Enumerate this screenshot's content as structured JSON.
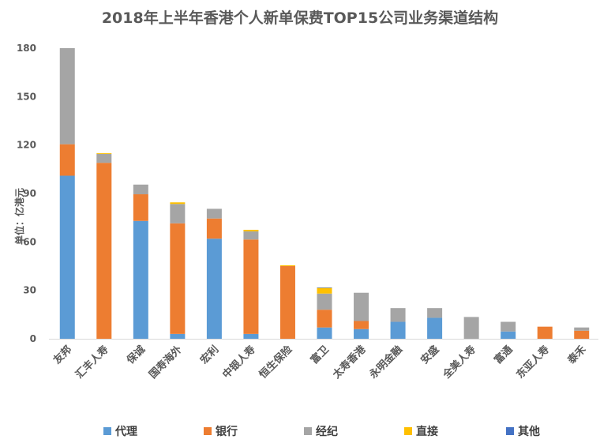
{
  "chart_data": {
    "type": "bar",
    "stacked": true,
    "title": "2018年上半年香港个人新单保费TOP15公司业务渠道结构",
    "ylabel": "单位：亿港元",
    "xlabel": "",
    "ylim": [
      0,
      180
    ],
    "yticks": [
      "0",
      "30",
      "60",
      "90",
      "120",
      "150",
      "180"
    ],
    "grid": false,
    "legend_position": "bottom",
    "categories": [
      "友邦",
      "汇丰人寿",
      "保诚",
      "国寿海外",
      "宏利",
      "中银人寿",
      "恒生保险",
      "富卫",
      "太寿香港",
      "永明金融",
      "安盛",
      "全美人寿",
      "富通",
      "东亚人寿",
      "泰禾"
    ],
    "series": [
      {
        "name": "代理",
        "color": "#5B9BD5",
        "values": [
          101,
          0,
          73,
          3,
          62,
          3,
          0,
          7,
          6,
          10.5,
          13,
          0,
          4.5,
          0,
          0
        ]
      },
      {
        "name": "银行",
        "color": "#ED7D31",
        "values": [
          19.5,
          109,
          16.5,
          68.5,
          12.5,
          58.5,
          45,
          11,
          5,
          0,
          0,
          0,
          0,
          7.5,
          5
        ]
      },
      {
        "name": "经纪",
        "color": "#A5A5A5",
        "values": [
          59.5,
          5.5,
          6,
          12,
          6,
          5,
          0,
          10,
          17.5,
          8.5,
          6,
          13.5,
          6,
          0,
          2
        ]
      },
      {
        "name": "直接",
        "color": "#FFC000",
        "values": [
          0,
          0.5,
          0,
          1,
          0,
          1,
          0.5,
          3.5,
          0,
          0,
          0,
          0,
          0,
          0,
          0
        ]
      },
      {
        "name": "其他",
        "color": "#4472C4",
        "values": [
          0,
          0,
          0,
          0,
          0,
          0,
          0,
          0.3,
          0,
          0,
          0,
          0,
          0,
          0,
          0
        ]
      }
    ]
  }
}
